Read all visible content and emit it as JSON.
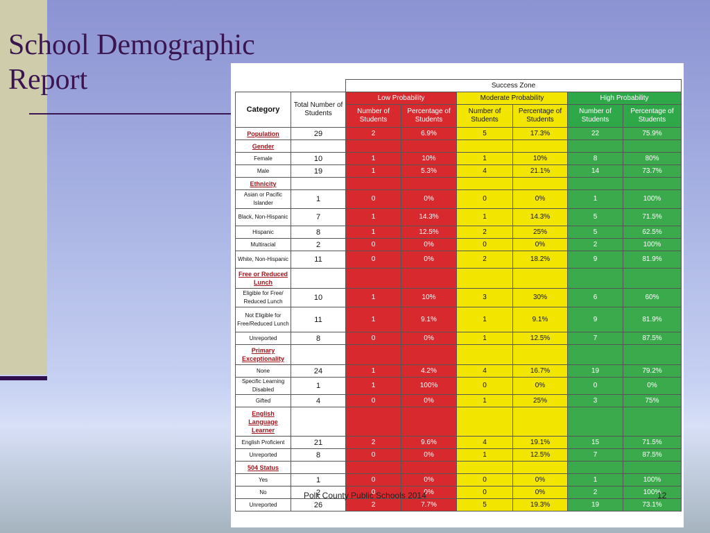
{
  "slide": {
    "title": "School Demographic Report",
    "footer": "Polk County Public Schools 2014",
    "slide_number": "12"
  },
  "table": {
    "success_zone_label": "Success Zone",
    "groups": {
      "low": "Low Probability",
      "moderate": "Moderate Probability",
      "high": "High Probability"
    },
    "headers": {
      "category": "Category",
      "total": "Total Number of Students",
      "number": "Number of Students",
      "percentage": "Percentage of Students"
    },
    "rows": [
      {
        "category": "Population",
        "section": true,
        "total": "29",
        "low_n": "2",
        "low_p": "6.9%",
        "mod_n": "5",
        "mod_p": "17.3%",
        "high_n": "22",
        "high_p": "75.9%"
      },
      {
        "category": "Gender",
        "section": true,
        "total": "",
        "low_n": "",
        "low_p": "",
        "mod_n": "",
        "mod_p": "",
        "high_n": "",
        "high_p": ""
      },
      {
        "category": "Female",
        "section": false,
        "total": "10",
        "low_n": "1",
        "low_p": "10%",
        "mod_n": "1",
        "mod_p": "10%",
        "high_n": "8",
        "high_p": "80%"
      },
      {
        "category": "Male",
        "section": false,
        "total": "19",
        "low_n": "1",
        "low_p": "5.3%",
        "mod_n": "4",
        "mod_p": "21.1%",
        "high_n": "14",
        "high_p": "73.7%"
      },
      {
        "category": "Ethnicity",
        "section": true,
        "total": "",
        "low_n": "",
        "low_p": "",
        "mod_n": "",
        "mod_p": "",
        "high_n": "",
        "high_p": ""
      },
      {
        "category": "Asian or Pacific Islander",
        "section": false,
        "total": "1",
        "low_n": "0",
        "low_p": "0%",
        "mod_n": "0",
        "mod_p": "0%",
        "high_n": "1",
        "high_p": "100%"
      },
      {
        "category": "Black, Non-Hispanic",
        "section": false,
        "total": "7",
        "low_n": "1",
        "low_p": "14.3%",
        "mod_n": "1",
        "mod_p": "14.3%",
        "high_n": "5",
        "high_p": "71.5%"
      },
      {
        "category": "Hispanic",
        "section": false,
        "total": "8",
        "low_n": "1",
        "low_p": "12.5%",
        "mod_n": "2",
        "mod_p": "25%",
        "high_n": "5",
        "high_p": "62.5%"
      },
      {
        "category": "Multiracial",
        "section": false,
        "total": "2",
        "low_n": "0",
        "low_p": "0%",
        "mod_n": "0",
        "mod_p": "0%",
        "high_n": "2",
        "high_p": "100%"
      },
      {
        "category": "White, Non-Hispanic",
        "section": false,
        "total": "11",
        "low_n": "0",
        "low_p": "0%",
        "mod_n": "2",
        "mod_p": "18.2%",
        "high_n": "9",
        "high_p": "81.9%"
      },
      {
        "category": "Free or Reduced Lunch",
        "section": true,
        "total": "",
        "low_n": "",
        "low_p": "",
        "mod_n": "",
        "mod_p": "",
        "high_n": "",
        "high_p": ""
      },
      {
        "category": "Eligible for Free/ Reduced Lunch",
        "section": false,
        "total": "10",
        "low_n": "1",
        "low_p": "10%",
        "mod_n": "3",
        "mod_p": "30%",
        "high_n": "6",
        "high_p": "60%"
      },
      {
        "category": "Not Eligible for Free/Reduced Lunch",
        "section": false,
        "total": "11",
        "low_n": "1",
        "low_p": "9.1%",
        "mod_n": "1",
        "mod_p": "9.1%",
        "high_n": "9",
        "high_p": "81.9%"
      },
      {
        "category": "Unreported",
        "section": false,
        "total": "8",
        "low_n": "0",
        "low_p": "0%",
        "mod_n": "1",
        "mod_p": "12.5%",
        "high_n": "7",
        "high_p": "87.5%"
      },
      {
        "category": "Primary Exceptionality",
        "section": true,
        "total": "",
        "low_n": "",
        "low_p": "",
        "mod_n": "",
        "mod_p": "",
        "high_n": "",
        "high_p": ""
      },
      {
        "category": "None",
        "section": false,
        "total": "24",
        "low_n": "1",
        "low_p": "4.2%",
        "mod_n": "4",
        "mod_p": "16.7%",
        "high_n": "19",
        "high_p": "79.2%"
      },
      {
        "category": "Specific Learning Disabled",
        "section": false,
        "total": "1",
        "low_n": "1",
        "low_p": "100%",
        "mod_n": "0",
        "mod_p": "0%",
        "high_n": "0",
        "high_p": "0%"
      },
      {
        "category": "Gifted",
        "section": false,
        "total": "4",
        "low_n": "0",
        "low_p": "0%",
        "mod_n": "1",
        "mod_p": "25%",
        "high_n": "3",
        "high_p": "75%"
      },
      {
        "category": "English Language Learner",
        "section": true,
        "total": "",
        "low_n": "",
        "low_p": "",
        "mod_n": "",
        "mod_p": "",
        "high_n": "",
        "high_p": ""
      },
      {
        "category": "English Proficient",
        "section": false,
        "total": "21",
        "low_n": "2",
        "low_p": "9.6%",
        "mod_n": "4",
        "mod_p": "19.1%",
        "high_n": "15",
        "high_p": "71.5%"
      },
      {
        "category": "Unreported",
        "section": false,
        "total": "8",
        "low_n": "0",
        "low_p": "0%",
        "mod_n": "1",
        "mod_p": "12.5%",
        "high_n": "7",
        "high_p": "87.5%"
      },
      {
        "category": "504 Status",
        "section": true,
        "total": "",
        "low_n": "",
        "low_p": "",
        "mod_n": "",
        "mod_p": "",
        "high_n": "",
        "high_p": ""
      },
      {
        "category": "Yes",
        "section": false,
        "total": "1",
        "low_n": "0",
        "low_p": "0%",
        "mod_n": "0",
        "mod_p": "0%",
        "high_n": "1",
        "high_p": "100%"
      },
      {
        "category": "No",
        "section": false,
        "total": "2",
        "low_n": "0",
        "low_p": "0%",
        "mod_n": "0",
        "mod_p": "0%",
        "high_n": "2",
        "high_p": "100%"
      },
      {
        "category": "Unreported",
        "section": false,
        "total": "26",
        "low_n": "2",
        "low_p": "7.7%",
        "mod_n": "5",
        "mod_p": "19.3%",
        "high_n": "19",
        "high_p": "73.1%"
      }
    ]
  },
  "colors": {
    "low": "#d82a2e",
    "moderate": "#f2e600",
    "high": "#3aaa4c",
    "title": "#3a1550",
    "section_label": "#a3151c"
  }
}
